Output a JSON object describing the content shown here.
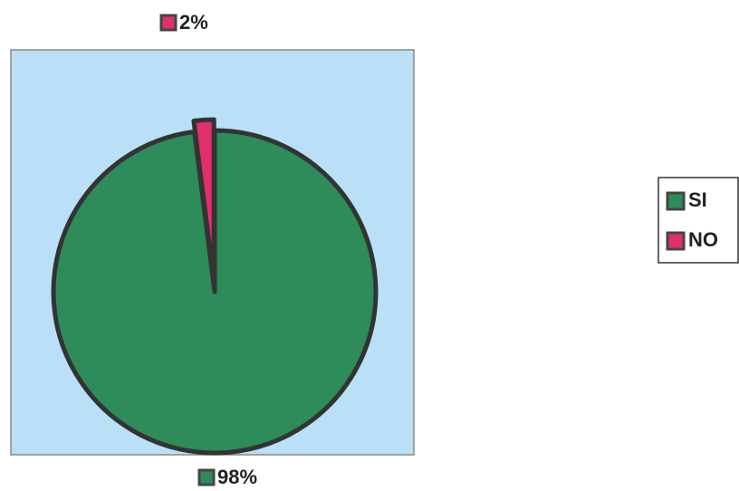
{
  "chart_data": {
    "type": "pie",
    "categories": [
      "SI",
      "NO"
    ],
    "values": [
      98,
      2
    ],
    "value_labels": [
      "98%",
      "2%"
    ],
    "colors": [
      "#2e8b5a",
      "#e0306a"
    ],
    "legend": "right"
  }
}
